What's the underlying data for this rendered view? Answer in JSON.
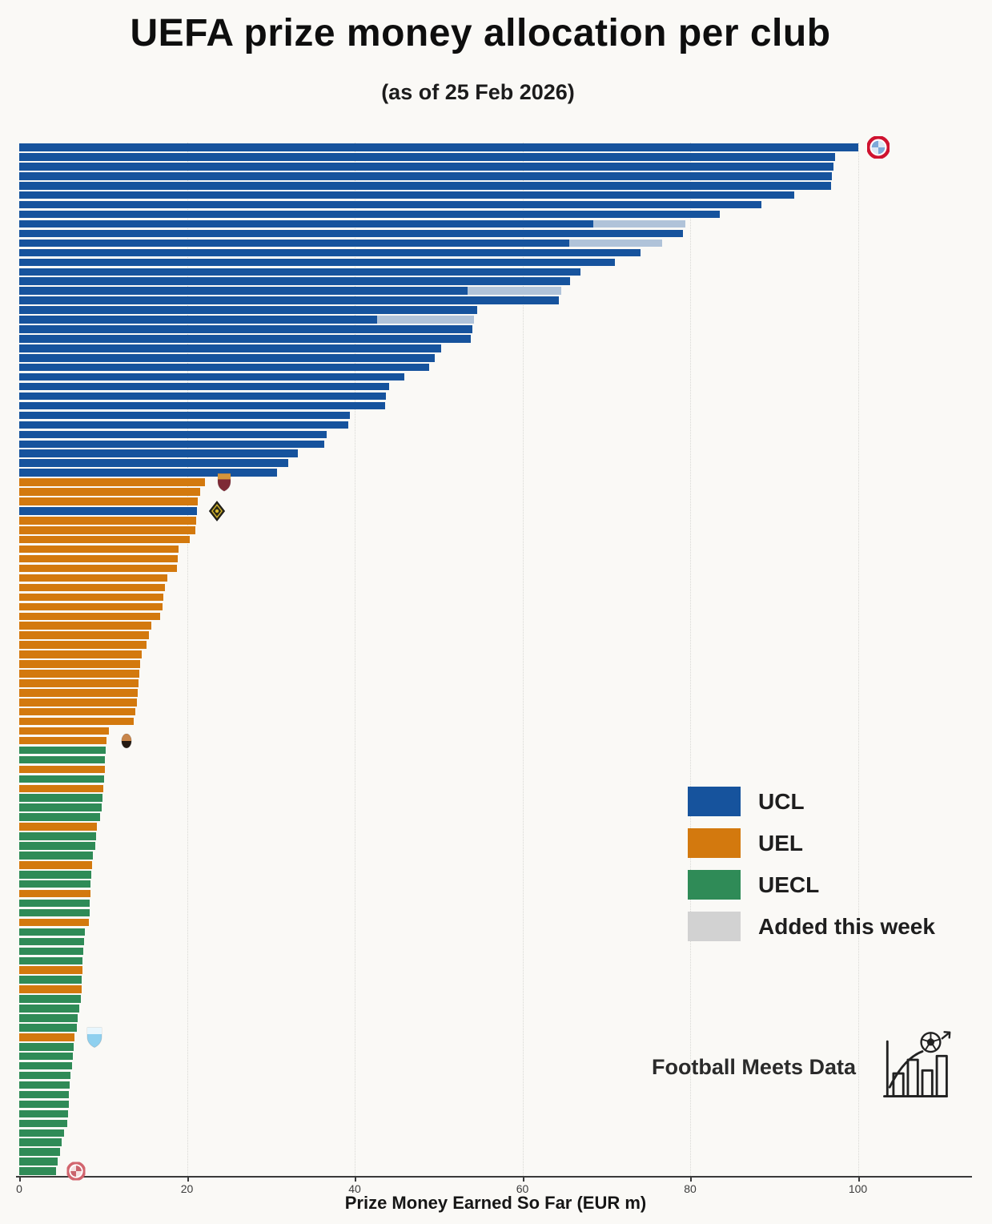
{
  "header": {
    "title": "UEFA prize money allocation per club",
    "subtitle": "(as of 25 Feb 2026)"
  },
  "legend": {
    "items": [
      {
        "label": "UCL",
        "color": "#16539d"
      },
      {
        "label": "UEL",
        "color": "#d3790e"
      },
      {
        "label": "UECL",
        "color": "#2f8b57"
      },
      {
        "label": "Added this week",
        "color": "#d2d2d2"
      }
    ]
  },
  "branding": {
    "text": "Football Meets Data"
  },
  "chart_data": {
    "type": "bar",
    "orientation": "horizontal",
    "title": "UEFA prize money allocation per club",
    "subtitle": "(as of 25 Feb 2026)",
    "xlabel": "Prize Money Earned So Far (EUR m)",
    "x_unit": "EUR m",
    "xticks": [
      0,
      20,
      40,
      60,
      80,
      100
    ],
    "xlim": [
      0,
      113.5
    ],
    "sort": "descending",
    "grid": "vertical-dotted",
    "n_bars": 108,
    "competition_counts": {
      "UCL": 36,
      "UEL": 36,
      "UECL": 36
    },
    "colors": {
      "UCL": "#16539d",
      "UEL": "#d3790e",
      "UECL": "#2f8b57"
    },
    "added_bar_color": "#b0c3d9",
    "added_legend_color": "#d2d2d2",
    "bars_format": [
      "competition",
      "total_eur_m",
      "added_this_week_eur_m"
    ],
    "bars": [
      [
        "UCL",
        100.0
      ],
      [
        "UCL",
        97.3
      ],
      [
        "UCL",
        97.1
      ],
      [
        "UCL",
        96.9
      ],
      [
        "UCL",
        96.8
      ],
      [
        "UCL",
        92.4
      ],
      [
        "UCL",
        88.5
      ],
      [
        "UCL",
        83.5
      ],
      [
        "UCL",
        79.4,
        11.0
      ],
      [
        "UCL",
        79.1
      ],
      [
        "UCL",
        76.7,
        11.1
      ],
      [
        "UCL",
        74.1
      ],
      [
        "UCL",
        71.0
      ],
      [
        "UCL",
        66.9
      ],
      [
        "UCL",
        65.7
      ],
      [
        "UCL",
        64.6,
        11.1
      ],
      [
        "UCL",
        64.3
      ],
      [
        "UCL",
        54.6
      ],
      [
        "UCL",
        54.2,
        11.5
      ],
      [
        "UCL",
        54.0
      ],
      [
        "UCL",
        53.8
      ],
      [
        "UCL",
        50.3
      ],
      [
        "UCL",
        49.5
      ],
      [
        "UCL",
        48.9
      ],
      [
        "UCL",
        45.9
      ],
      [
        "UCL",
        44.1
      ],
      [
        "UCL",
        43.7
      ],
      [
        "UCL",
        43.6
      ],
      [
        "UCL",
        39.4
      ],
      [
        "UCL",
        39.2
      ],
      [
        "UCL",
        36.7
      ],
      [
        "UCL",
        36.4
      ],
      [
        "UCL",
        33.2
      ],
      [
        "UCL",
        32.1
      ],
      [
        "UCL",
        30.7
      ],
      [
        "UEL",
        22.1
      ],
      [
        "UEL",
        21.6
      ],
      [
        "UEL",
        21.3
      ],
      [
        "UCL",
        21.2
      ],
      [
        "UEL",
        21.1
      ],
      [
        "UEL",
        21.0
      ],
      [
        "UEL",
        20.3
      ],
      [
        "UEL",
        19.0
      ],
      [
        "UEL",
        18.9
      ],
      [
        "UEL",
        18.8
      ],
      [
        "UEL",
        17.7
      ],
      [
        "UEL",
        17.4
      ],
      [
        "UEL",
        17.2
      ],
      [
        "UEL",
        17.1
      ],
      [
        "UEL",
        16.8
      ],
      [
        "UEL",
        15.7
      ],
      [
        "UEL",
        15.5
      ],
      [
        "UEL",
        15.2
      ],
      [
        "UEL",
        14.6
      ],
      [
        "UEL",
        14.4
      ],
      [
        "UEL",
        14.3
      ],
      [
        "UEL",
        14.2
      ],
      [
        "UEL",
        14.1
      ],
      [
        "UEL",
        14.0
      ],
      [
        "UEL",
        13.8
      ],
      [
        "UEL",
        13.6
      ],
      [
        "UEL",
        10.7
      ],
      [
        "UEL",
        10.4
      ],
      [
        "UECL",
        10.3
      ],
      [
        "UECL",
        10.2
      ],
      [
        "UEL",
        10.2
      ],
      [
        "UECL",
        10.1
      ],
      [
        "UEL",
        10.0
      ],
      [
        "UECL",
        9.9
      ],
      [
        "UECL",
        9.8
      ],
      [
        "UECL",
        9.6
      ],
      [
        "UEL",
        9.3
      ],
      [
        "UECL",
        9.2
      ],
      [
        "UECL",
        9.1
      ],
      [
        "UECL",
        8.8
      ],
      [
        "UEL",
        8.7
      ],
      [
        "UECL",
        8.6
      ],
      [
        "UECL",
        8.5
      ],
      [
        "UEL",
        8.5
      ],
      [
        "UECL",
        8.4
      ],
      [
        "UECL",
        8.4
      ],
      [
        "UEL",
        8.3
      ],
      [
        "UECL",
        7.8
      ],
      [
        "UECL",
        7.7
      ],
      [
        "UECL",
        7.6
      ],
      [
        "UECL",
        7.5
      ],
      [
        "UEL",
        7.5
      ],
      [
        "UECL",
        7.4
      ],
      [
        "UEL",
        7.4
      ],
      [
        "UECL",
        7.3
      ],
      [
        "UECL",
        7.2
      ],
      [
        "UECL",
        7.0
      ],
      [
        "UECL",
        6.9
      ],
      [
        "UEL",
        6.6
      ],
      [
        "UECL",
        6.5
      ],
      [
        "UECL",
        6.4
      ],
      [
        "UECL",
        6.3
      ],
      [
        "UECL",
        6.1
      ],
      [
        "UECL",
        6.0
      ],
      [
        "UECL",
        5.9
      ],
      [
        "UECL",
        5.9
      ],
      [
        "UECL",
        5.8
      ],
      [
        "UECL",
        5.7
      ],
      [
        "UECL",
        5.3
      ],
      [
        "UECL",
        5.1
      ],
      [
        "UECL",
        4.9
      ],
      [
        "UECL",
        4.6
      ],
      [
        "UECL",
        4.4
      ]
    ],
    "logos": [
      {
        "bar": 1,
        "shape": "roundel",
        "desc": "red-white-roundel-crest",
        "c1": "#cf1330",
        "c2": "#7da9d8",
        "c3": "#ffffff",
        "size": 28
      },
      {
        "bar": 36,
        "shape": "shield",
        "desc": "maroon-gold-shield-crest",
        "c1": "#7e2a35",
        "c2": "#d4953a",
        "size": 24
      },
      {
        "bar": 39,
        "shape": "diamond",
        "desc": "dark-gold-diamond-crest",
        "c1": "#2e2a18",
        "c2": "#d8b92e",
        "size": 26
      },
      {
        "bar": 63,
        "shape": "oval",
        "desc": "tan-black-oval-crest",
        "c1": "#241a12",
        "c2": "#c8854a",
        "size": 19
      },
      {
        "bar": 94,
        "shape": "shield",
        "desc": "light-blue-shield-crest",
        "c1": "#8fd0ef",
        "c2": "#e8f6fd",
        "size": 27
      },
      {
        "bar": 108,
        "shape": "roundel",
        "desc": "pink-white-roundel-crest",
        "c1": "#d2656e",
        "c2": "#f6e3e3",
        "c3": "#bb3a45",
        "size": 23
      }
    ]
  }
}
